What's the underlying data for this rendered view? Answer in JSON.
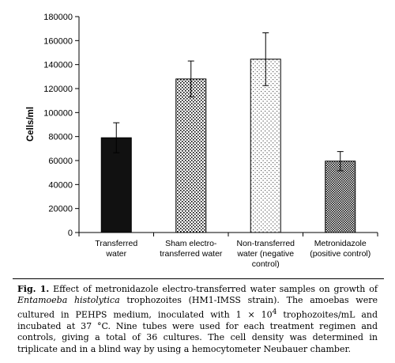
{
  "chart_data": {
    "type": "bar",
    "categories": [
      [
        "Transferred",
        "water"
      ],
      [
        "Sham electro-",
        "transferred water"
      ],
      [
        "Non-transferred",
        "water (negative",
        "control)"
      ],
      [
        "Metronidazole",
        "(positive control)"
      ]
    ],
    "values": [
      79000,
      128000,
      144500,
      59500
    ],
    "errors": [
      12500,
      15000,
      22000,
      8000
    ],
    "patterns": [
      "solid-black",
      "dots-sparse",
      "dots-light",
      "checker"
    ],
    "ylabel": "Cells/ml",
    "ylim": [
      0,
      180000
    ],
    "yticks": [
      0,
      20000,
      40000,
      60000,
      80000,
      100000,
      120000,
      140000,
      160000,
      180000
    ],
    "grid": false,
    "legend": "none"
  },
  "caption": {
    "label": "Fig. 1.",
    "t1": " Effect of metronidazole electro-transferred water samples on growth of ",
    "species": "Entamoeba histolytica",
    "t2": " trophozoites (HM1-IMSS strain). The amoebas were cultured in PEHPS medium, inoculated with 1 × 10",
    "sup": "4",
    "t3": " trophozoites/mL and incubated at 37 °C. Nine tubes were used for each treatment regimen and controls, giving a total of 36 cultures. The cell density was determined in triplicate and in a blind way by using a hemocytometer Neubauer chamber."
  }
}
